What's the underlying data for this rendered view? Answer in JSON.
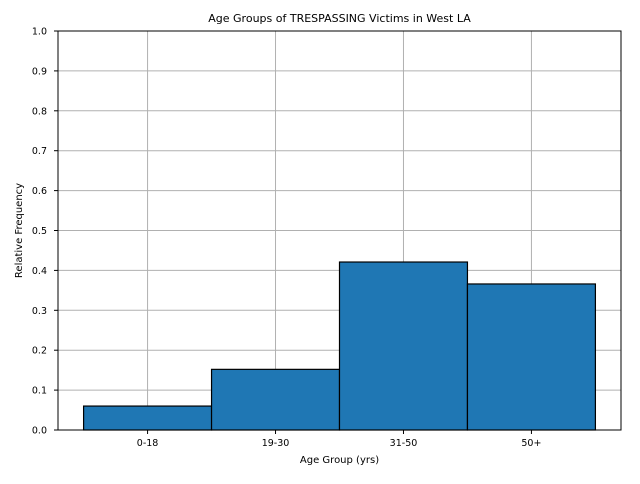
{
  "chart_data": {
    "type": "bar",
    "title": "Age Groups of TRESPASSING Victims in West LA",
    "xlabel": "Age Group (yrs)",
    "ylabel": "Relative Frequency",
    "categories": [
      "0-18",
      "19-30",
      "31-50",
      "50+"
    ],
    "values": [
      0.06,
      0.152,
      0.421,
      0.366
    ],
    "ylim": [
      0,
      1.0
    ],
    "yticks": [
      "0.0",
      "0.1",
      "0.2",
      "0.3",
      "0.4",
      "0.5",
      "0.6",
      "0.7",
      "0.8",
      "0.9",
      "1.0"
    ],
    "grid": true,
    "bar_color": "#1f77b4",
    "edge_color": "#000000",
    "grid_color": "#b0b0b0"
  }
}
